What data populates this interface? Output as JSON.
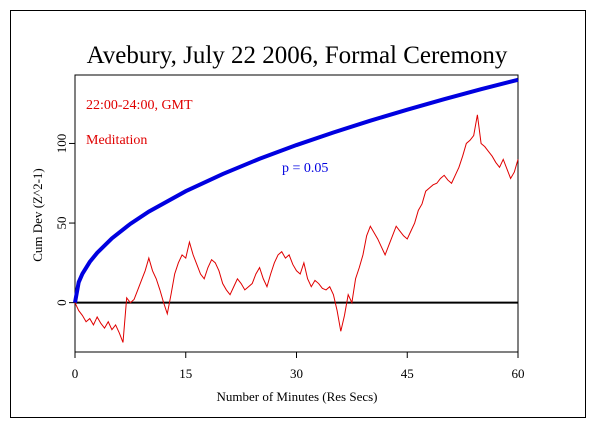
{
  "chart_data": {
    "type": "line",
    "title": "Avebury, July 22 2006, Formal Ceremony",
    "xlabel": "Number of Minutes (Res Secs)",
    "ylabel": "Cum Dev (Z^2-1)",
    "annotations": [
      {
        "text": "22:00-24:00, GMT",
        "color": "#e00000"
      },
      {
        "text": "Meditation",
        "color": "#e00000"
      },
      {
        "text": "p = 0.05",
        "color": "#0000e0"
      }
    ],
    "xlim": [
      0,
      60
    ],
    "ylim": [
      -31,
      143
    ],
    "xticks": [
      0,
      15,
      30,
      45,
      60
    ],
    "yticks": [
      0,
      50,
      100
    ],
    "series": [
      {
        "color": "#0000e0",
        "x": [
          0,
          0.5,
          1,
          2,
          3,
          5,
          7.5,
          10,
          15,
          20,
          25,
          30,
          35,
          40,
          45,
          50,
          55,
          60
        ],
        "values": [
          0,
          12.8,
          18.1,
          25.6,
          31.3,
          40.4,
          49.5,
          57.2,
          70,
          80.8,
          90.4,
          99,
          106.9,
          114.3,
          121.2,
          127.8,
          134.1,
          140
        ]
      },
      {
        "color": "#e00000",
        "x": [
          0,
          0.5,
          1,
          1.5,
          2,
          2.5,
          3,
          3.5,
          4,
          4.5,
          5,
          5.5,
          6,
          6.5,
          7,
          7.5,
          8,
          8.5,
          9,
          9.5,
          10,
          10.5,
          11,
          11.5,
          12,
          12.5,
          13,
          13.5,
          14,
          14.5,
          15,
          15.5,
          16,
          16.5,
          17,
          17.5,
          18,
          18.5,
          19,
          19.5,
          20,
          20.5,
          21,
          21.5,
          22,
          22.5,
          23,
          23.5,
          24,
          24.5,
          25,
          25.5,
          26,
          26.5,
          27,
          27.5,
          28,
          28.5,
          29,
          29.5,
          30,
          30.5,
          31,
          31.5,
          32,
          32.5,
          33,
          33.5,
          34,
          34.5,
          35,
          35.5,
          36,
          36.5,
          37,
          37.5,
          38,
          38.5,
          39,
          39.5,
          40,
          40.5,
          41,
          41.5,
          42,
          42.5,
          43,
          43.5,
          44,
          44.5,
          45,
          45.5,
          46,
          46.5,
          47,
          47.5,
          48,
          48.5,
          49,
          49.5,
          50,
          50.5,
          51,
          51.5,
          52,
          52.5,
          53,
          53.5,
          54,
          54.5,
          55,
          55.5,
          56,
          56.5,
          57,
          57.5,
          58,
          58.5,
          59,
          59.5,
          60
        ],
        "values": [
          0,
          -5,
          -8,
          -12,
          -10,
          -14,
          -9,
          -13,
          -16,
          -12,
          -17,
          -14,
          -19,
          -25,
          3,
          0,
          2,
          8,
          14,
          20,
          28,
          20,
          15,
          8,
          0,
          -7,
          5,
          18,
          25,
          30,
          28,
          38,
          30,
          24,
          18,
          15,
          22,
          27,
          25,
          20,
          12,
          8,
          5,
          10,
          15,
          12,
          8,
          10,
          12,
          18,
          22,
          15,
          10,
          18,
          25,
          30,
          32,
          28,
          30,
          24,
          20,
          18,
          25,
          15,
          10,
          14,
          12,
          9,
          8,
          10,
          5,
          -5,
          -18,
          -8,
          5,
          0,
          15,
          22,
          30,
          42,
          48,
          44,
          40,
          35,
          30,
          36,
          42,
          48,
          45,
          42,
          40,
          45,
          50,
          58,
          62,
          70,
          72,
          74,
          75,
          78,
          80,
          77,
          75,
          80,
          85,
          92,
          100,
          102,
          105,
          118,
          100,
          98,
          95,
          92,
          88,
          85,
          90,
          84,
          78,
          82,
          90
        ]
      }
    ]
  }
}
